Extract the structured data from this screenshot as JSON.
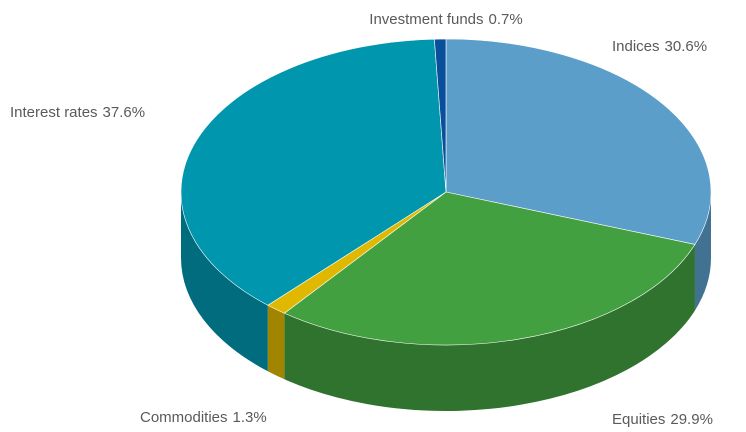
{
  "chart_data": {
    "type": "pie",
    "categories": [
      "Indices",
      "Equities",
      "Commodities",
      "Interest rates",
      "Investment funds"
    ],
    "values": [
      30.6,
      29.9,
      1.3,
      37.6,
      0.7
    ],
    "value_labels": [
      "30.6%",
      "29.9%",
      "1.3%",
      "37.6%",
      "0.7%"
    ],
    "colors": [
      "#5b9ec9",
      "#43a040",
      "#e0b800",
      "#0096ae",
      "#0a4f9c"
    ]
  }
}
